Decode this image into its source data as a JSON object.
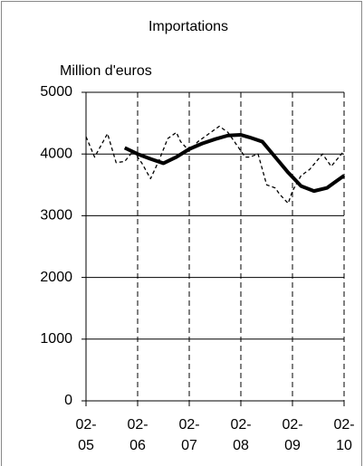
{
  "chart_data": {
    "type": "line",
    "title": "Importations",
    "y_label": "Million d'euros",
    "xlim": [
      0,
      60
    ],
    "xticks": [
      {
        "value": 0,
        "label": "02-05"
      },
      {
        "value": 12,
        "label": "02-06"
      },
      {
        "value": 24,
        "label": "02-07"
      },
      {
        "value": 36,
        "label": "02-08"
      },
      {
        "value": 48,
        "label": "02-09"
      },
      {
        "value": 60,
        "label": "02-10"
      }
    ],
    "ylim": [
      0,
      5000
    ],
    "yticks": [
      0,
      1000,
      2000,
      3000,
      4000,
      5000
    ],
    "grid": true,
    "series": [
      {
        "color": "#000000",
        "style": "dashed",
        "x": [
          0,
          2,
          5,
          7,
          9,
          11,
          13,
          15,
          17,
          19,
          21,
          22,
          24,
          26,
          28,
          31,
          33,
          35,
          37,
          38,
          40,
          42,
          44,
          45,
          47,
          48,
          50,
          52,
          55,
          57,
          60
        ],
        "values": [
          4280,
          3950,
          4330,
          3860,
          3880,
          4050,
          3850,
          3600,
          3900,
          4250,
          4350,
          4200,
          4050,
          4200,
          4300,
          4450,
          4350,
          4150,
          3950,
          3950,
          4000,
          3500,
          3450,
          3350,
          3200,
          3400,
          3650,
          3750,
          4000,
          3800,
          4050
        ]
      },
      {
        "color": "#000000",
        "style": "solid",
        "x": [
          9,
          12,
          15,
          18,
          21,
          24,
          27,
          30,
          33,
          36,
          38,
          41,
          44,
          47,
          50,
          53,
          56,
          58,
          60
        ],
        "values": [
          4100,
          4000,
          3920,
          3850,
          3950,
          4080,
          4170,
          4240,
          4300,
          4310,
          4270,
          4200,
          3950,
          3700,
          3480,
          3400,
          3450,
          3550,
          3650
        ]
      }
    ]
  }
}
